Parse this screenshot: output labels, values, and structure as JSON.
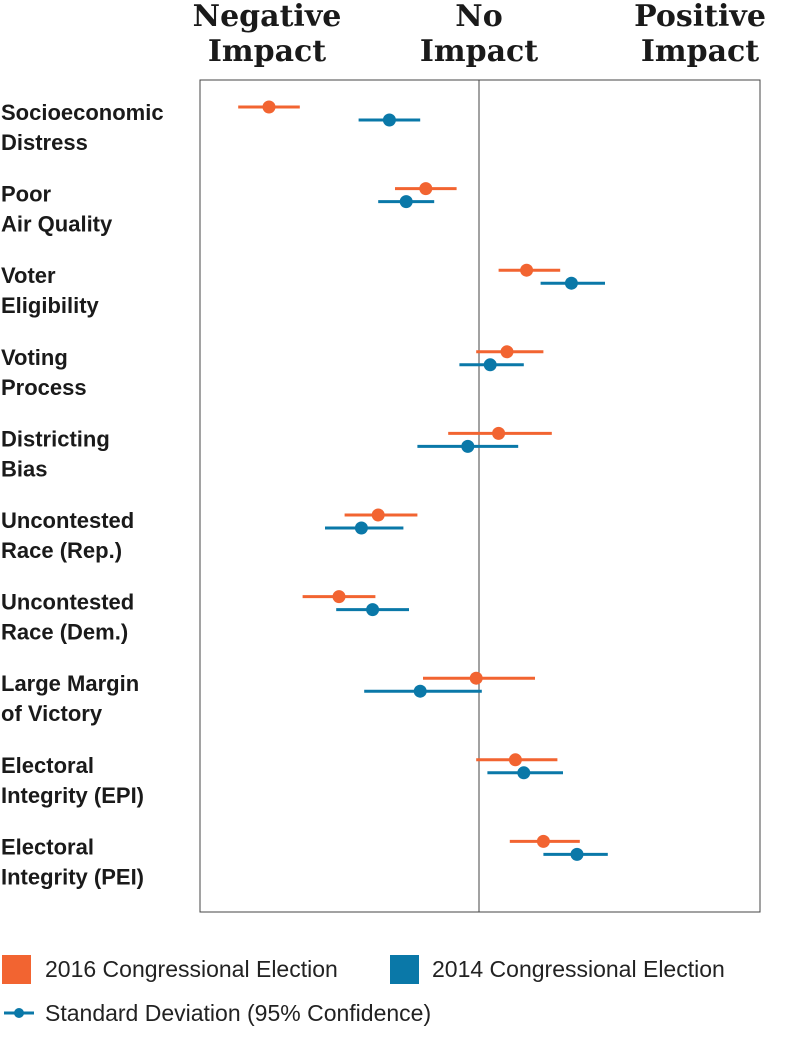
{
  "chart_data": {
    "type": "scatter",
    "chart_subtype": "dot-and-whisker",
    "scale_headers": {
      "negative": [
        "Negative",
        "Impact"
      ],
      "none": [
        "No",
        "Impact"
      ],
      "positive": [
        "Positive",
        "Impact"
      ]
    },
    "x_range": [
      -1,
      1
    ],
    "x_zero_line": true,
    "grid": false,
    "legend_placement": "bottom",
    "categories": [
      [
        "Socioeconomic",
        "Distress"
      ],
      [
        "Poor",
        "Air Quality"
      ],
      [
        "Voter",
        "Eligibility"
      ],
      [
        "Voting",
        "Process"
      ],
      [
        "Districting",
        "Bias"
      ],
      [
        "Uncontested",
        "Race (Rep.)"
      ],
      [
        "Uncontested",
        "Race (Dem.)"
      ],
      [
        "Large Margin",
        "of Victory"
      ],
      [
        "Electoral",
        "Integrity (EPI)"
      ],
      [
        "Electoral",
        "Integrity (PEI)"
      ]
    ],
    "series": [
      {
        "name": "2016 Congressional Election",
        "color": "#f26431",
        "points": [
          {
            "value": -0.75,
            "low": -0.86,
            "high": -0.64
          },
          {
            "value": -0.19,
            "low": -0.3,
            "high": -0.08
          },
          {
            "value": 0.17,
            "low": 0.07,
            "high": 0.29
          },
          {
            "value": 0.1,
            "low": -0.01,
            "high": 0.23
          },
          {
            "value": 0.07,
            "low": -0.11,
            "high": 0.26
          },
          {
            "value": -0.36,
            "low": -0.48,
            "high": -0.22
          },
          {
            "value": -0.5,
            "low": -0.63,
            "high": -0.37
          },
          {
            "value": -0.01,
            "low": -0.2,
            "high": 0.2
          },
          {
            "value": 0.13,
            "low": -0.01,
            "high": 0.28
          },
          {
            "value": 0.23,
            "low": 0.11,
            "high": 0.36
          }
        ]
      },
      {
        "name": "2014 Congressional Election",
        "color": "#0a78a8",
        "points": [
          {
            "value": -0.32,
            "low": -0.43,
            "high": -0.21
          },
          {
            "value": -0.26,
            "low": -0.36,
            "high": -0.16
          },
          {
            "value": 0.33,
            "low": 0.22,
            "high": 0.45
          },
          {
            "value": 0.04,
            "low": -0.07,
            "high": 0.16
          },
          {
            "value": -0.04,
            "low": -0.22,
            "high": 0.14
          },
          {
            "value": -0.42,
            "low": -0.55,
            "high": -0.27
          },
          {
            "value": -0.38,
            "low": -0.51,
            "high": -0.25
          },
          {
            "value": -0.21,
            "low": -0.41,
            "high": 0.01
          },
          {
            "value": 0.16,
            "low": 0.03,
            "high": 0.3
          },
          {
            "value": 0.35,
            "low": 0.23,
            "high": 0.46
          }
        ]
      }
    ],
    "legend": {
      "series_2016": "2016 Congressional Election",
      "series_2014": "2014 Congressional Election",
      "std_dev": "Standard Deviation (95% Confidence)",
      "std_dev_color": "#0a78a8"
    }
  }
}
